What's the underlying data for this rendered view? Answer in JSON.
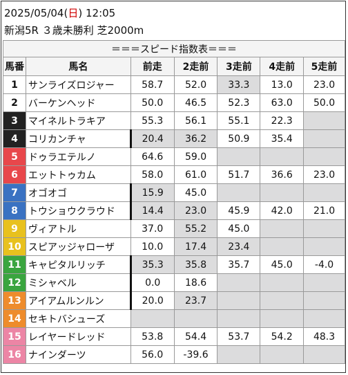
{
  "header": {
    "date": "2025/05/04",
    "dow_open": "(",
    "dow": "日",
    "dow_close": ")",
    "time": "12:05",
    "race": "新潟5R ３歳未勝利 芝2000m"
  },
  "table": {
    "title": "＝＝＝スピード指数表＝＝＝",
    "columns": [
      "馬番",
      "馬名",
      "前走",
      "2走前",
      "3走前",
      "4走前",
      "5走前"
    ],
    "rows": [
      {
        "num": "1",
        "name": "サンライズロジャー",
        "bg": "#ffffff",
        "fg": "#111111",
        "v": [
          "58.7",
          "52.0",
          "33.3",
          "13.0",
          "23.0"
        ],
        "gray": [
          0,
          0,
          1,
          0,
          0
        ],
        "thick": 0
      },
      {
        "num": "2",
        "name": "バーケンヘッド",
        "bg": "#ffffff",
        "fg": "#111111",
        "v": [
          "50.0",
          "46.5",
          "52.3",
          "63.0",
          "50.0"
        ],
        "gray": [
          0,
          0,
          0,
          0,
          0
        ],
        "thick": 0
      },
      {
        "num": "3",
        "name": "マイネルトラキア",
        "bg": "#222222",
        "fg": "#ffffff",
        "v": [
          "55.3",
          "56.1",
          "55.1",
          "22.3",
          ""
        ],
        "gray": [
          0,
          0,
          0,
          0,
          1
        ],
        "thick": 0
      },
      {
        "num": "4",
        "name": "コリカンチャ",
        "bg": "#222222",
        "fg": "#ffffff",
        "v": [
          "20.4",
          "36.2",
          "50.9",
          "35.4",
          ""
        ],
        "gray": [
          1,
          1,
          0,
          0,
          1
        ],
        "thick": 1
      },
      {
        "num": "5",
        "name": "ドゥラエテルノ",
        "bg": "#e8474b",
        "fg": "#ffffff",
        "v": [
          "64.6",
          "59.0",
          "",
          "",
          ""
        ],
        "gray": [
          0,
          0,
          1,
          1,
          1
        ],
        "thick": 0
      },
      {
        "num": "6",
        "name": "エットトゥカム",
        "bg": "#e8474b",
        "fg": "#ffffff",
        "v": [
          "58.0",
          "61.0",
          "51.7",
          "36.6",
          "23.0"
        ],
        "gray": [
          0,
          0,
          0,
          0,
          0
        ],
        "thick": 0
      },
      {
        "num": "7",
        "name": "オゴオゴ",
        "bg": "#3a72c2",
        "fg": "#ffffff",
        "v": [
          "15.9",
          "45.0",
          "",
          "",
          ""
        ],
        "gray": [
          1,
          0,
          1,
          1,
          1
        ],
        "thick": 1
      },
      {
        "num": "8",
        "name": "トウショウクラウド",
        "bg": "#3a72c2",
        "fg": "#ffffff",
        "v": [
          "14.4",
          "23.0",
          "45.9",
          "42.0",
          "21.0"
        ],
        "gray": [
          1,
          1,
          0,
          0,
          0
        ],
        "thick": 1
      },
      {
        "num": "9",
        "name": "ヴィアトル",
        "bg": "#e8c11e",
        "fg": "#ffffff",
        "v": [
          "37.0",
          "55.2",
          "45.0",
          "",
          ""
        ],
        "gray": [
          0,
          1,
          0,
          1,
          1
        ],
        "thick": 0
      },
      {
        "num": "10",
        "name": "スピアッジャローザ",
        "bg": "#e8c11e",
        "fg": "#ffffff",
        "v": [
          "10.0",
          "17.4",
          "23.4",
          "",
          ""
        ],
        "gray": [
          0,
          1,
          1,
          1,
          1
        ],
        "thick": 0
      },
      {
        "num": "11",
        "name": "キャピタルリッチ",
        "bg": "#3aa53f",
        "fg": "#ffffff",
        "v": [
          "35.3",
          "35.8",
          "35.7",
          "45.0",
          "-4.0"
        ],
        "gray": [
          1,
          1,
          0,
          0,
          0
        ],
        "thick": 1
      },
      {
        "num": "12",
        "name": "ミシャベル",
        "bg": "#3aa53f",
        "fg": "#ffffff",
        "v": [
          "0.0",
          "18.6",
          "",
          "",
          ""
        ],
        "gray": [
          0,
          0,
          1,
          1,
          1
        ],
        "thick": 1
      },
      {
        "num": "13",
        "name": "アイアムルンルン",
        "bg": "#ee8c2c",
        "fg": "#ffffff",
        "v": [
          "20.0",
          "23.7",
          "",
          "",
          ""
        ],
        "gray": [
          0,
          1,
          1,
          1,
          1
        ],
        "thick": 1
      },
      {
        "num": "14",
        "name": "セキトバシューズ",
        "bg": "#ee8c2c",
        "fg": "#ffffff",
        "v": [
          "",
          "",
          "",
          "",
          ""
        ],
        "gray": [
          1,
          1,
          1,
          1,
          1
        ],
        "thick": 0
      },
      {
        "num": "15",
        "name": "レイヤードレッド",
        "bg": "#ec85a5",
        "fg": "#ffffff",
        "v": [
          "53.8",
          "54.4",
          "53.7",
          "54.2",
          "48.3"
        ],
        "gray": [
          0,
          0,
          0,
          0,
          0
        ],
        "thick": 0
      },
      {
        "num": "16",
        "name": "ナインダーツ",
        "bg": "#ec85a5",
        "fg": "#ffffff",
        "v": [
          "56.0",
          "-39.6",
          "",
          "",
          ""
        ],
        "gray": [
          0,
          0,
          1,
          1,
          1
        ],
        "thick": 0
      }
    ]
  }
}
